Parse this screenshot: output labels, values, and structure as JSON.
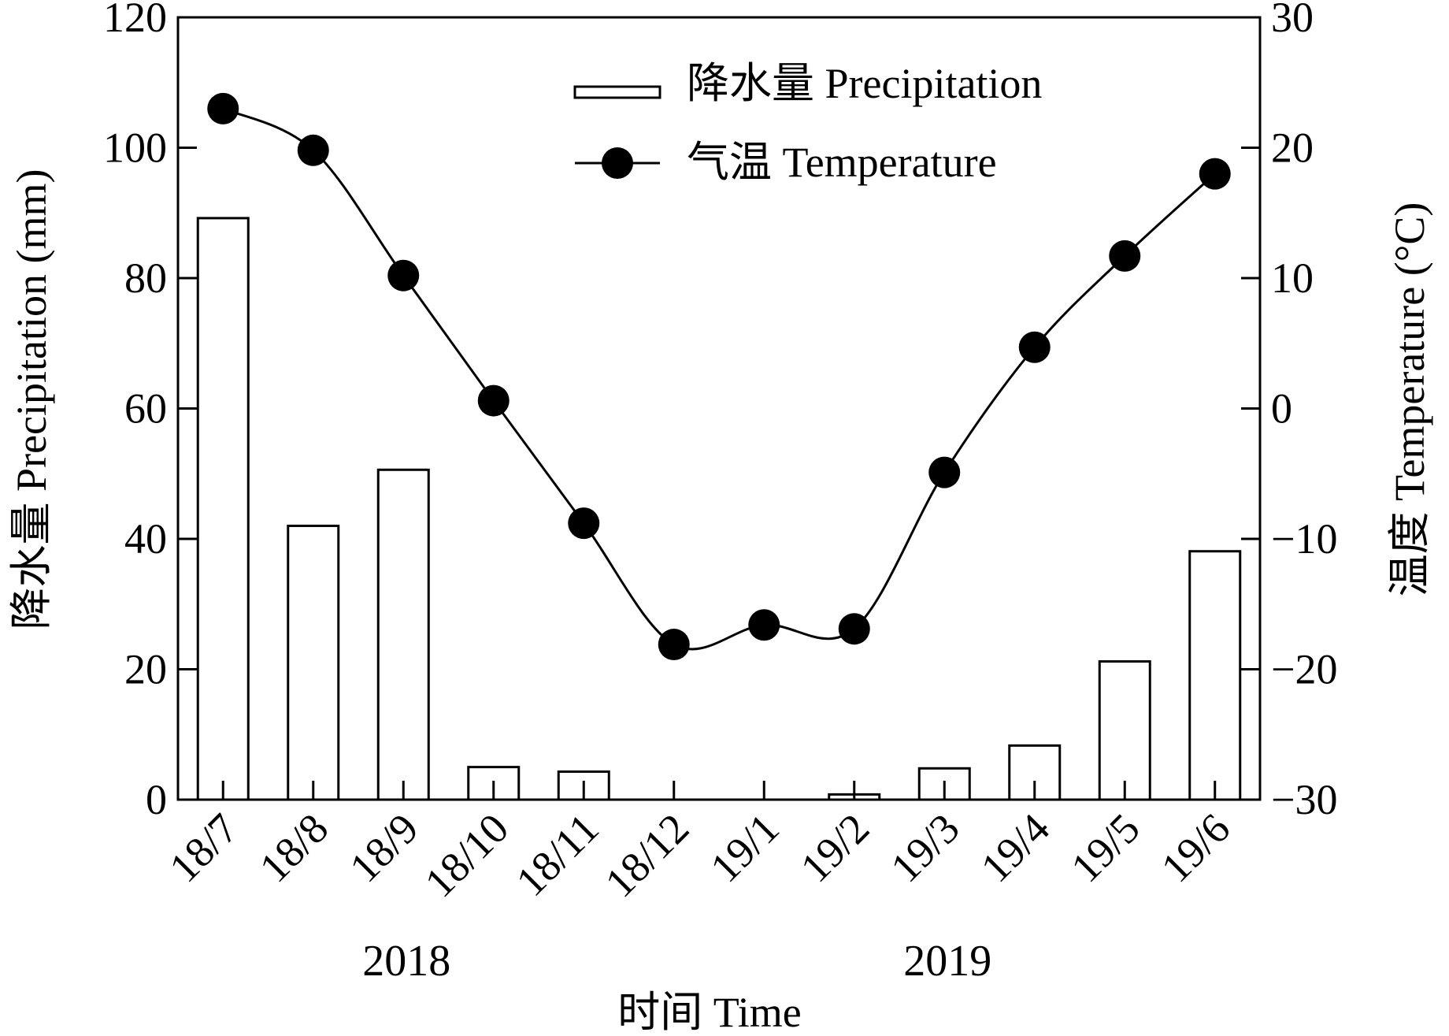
{
  "chart_data": {
    "type": "bar+line",
    "categories": [
      "18/7",
      "18/8",
      "18/9",
      "18/10",
      "18/11",
      "18/12",
      "19/1",
      "19/2",
      "19/3",
      "19/4",
      "19/5",
      "19/6"
    ],
    "year_groups": [
      {
        "label": "2018",
        "center_index": 2
      },
      {
        "label": "2019",
        "center_index": 8
      }
    ],
    "xlabel": "时间 Time",
    "series": [
      {
        "name": "降水量 Precipitation",
        "type": "bar",
        "axis": "left",
        "values": [
          89.2,
          42.0,
          50.6,
          5.0,
          4.3,
          0.0,
          0.0,
          0.8,
          4.8,
          8.3,
          21.2,
          38.1
        ]
      },
      {
        "name": "气温 Temperature",
        "type": "line",
        "axis": "right",
        "values": [
          23.0,
          19.8,
          10.2,
          0.6,
          -8.8,
          -18.1,
          -16.6,
          -16.9,
          -4.9,
          4.7,
          11.7,
          18.0
        ]
      }
    ],
    "y_left": {
      "label": "降水量 Precipitation (mm)",
      "min": 0,
      "max": 120,
      "ticks": [
        0,
        20,
        40,
        60,
        80,
        100,
        120
      ]
    },
    "y_right": {
      "label": "温度 Temperature (°C)",
      "min": -30,
      "max": 30,
      "ticks": [
        -30,
        -20,
        -10,
        0,
        10,
        20,
        30
      ],
      "tick_labels": [
        "−30",
        "−20",
        "−10",
        "0",
        "10",
        "20",
        "30"
      ]
    },
    "legend_position": "top-right",
    "grid": false,
    "colors": {
      "bar_fill": "#ffffff",
      "stroke": "#000000",
      "marker": "#000000"
    }
  }
}
